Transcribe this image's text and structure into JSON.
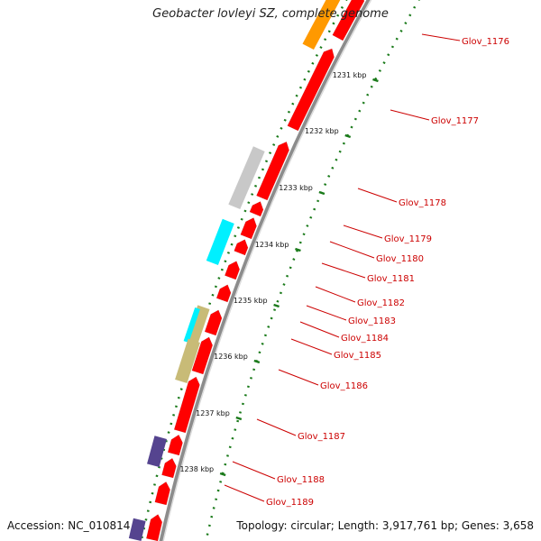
{
  "title": "Geobacter lovleyi SZ, complete genome",
  "accession": "Accession: NC_010814",
  "summary": "Topology: circular; Length: 3,917,761 bp; Genes: 3,658",
  "colors": {
    "backbone": "#8c8c8c",
    "cds": "#ff0000",
    "orange": "#ff9900",
    "gray": "#c8c8c8",
    "cyan": "#00f0ff",
    "khaki": "#c8bb77",
    "purple": "#55448f",
    "tick": "#1a7a1a",
    "label": "#cc0000"
  },
  "kbp_ticks": [
    "1231 kbp",
    "1232 kbp",
    "1233 kbp",
    "1234 kbp",
    "1235 kbp",
    "1236 kbp",
    "1237 kbp",
    "1238 kbp"
  ],
  "gene_labels": [
    "Glov_1176",
    "Glov_1177",
    "Glov_1178",
    "Glov_1179",
    "Glov_1180",
    "Glov_1181",
    "Glov_1182",
    "Glov_1183",
    "Glov_1184",
    "Glov_1185",
    "Glov_1186",
    "Glov_1187",
    "Glov_1188",
    "Glov_1189"
  ]
}
